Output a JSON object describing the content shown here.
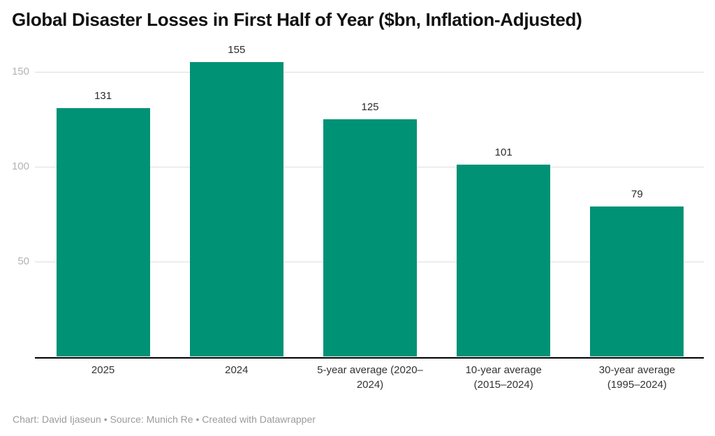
{
  "title": "Global Disaster Losses in First Half of Year ($bn, Inflation-Adjusted)",
  "footer": {
    "text": "Chart: David Ijaseun • Source: Munich Re • Created with Datawrapper"
  },
  "chart_data": {
    "type": "bar",
    "title": "Global Disaster Losses in First Half of Year ($bn, Inflation-Adjusted)",
    "categories": [
      "2025",
      "2024",
      "5-year average (2020–\n2024)",
      "10-year average\n(2015–2024)",
      "30-year average\n(1995–2024)"
    ],
    "values": [
      131,
      155,
      125,
      101,
      79
    ],
    "xlabel": "",
    "ylabel": "",
    "ylim": [
      0,
      164
    ],
    "yticks": [
      50,
      100,
      150
    ],
    "grid": "horizontal",
    "legend": "none",
    "colors": {
      "bar": "#009275",
      "gridline": "#dedede",
      "axis_line": "#000000",
      "tick_label": "#b3b3b3",
      "value_label": "#2b2b2b",
      "category_label": "#333333"
    }
  }
}
